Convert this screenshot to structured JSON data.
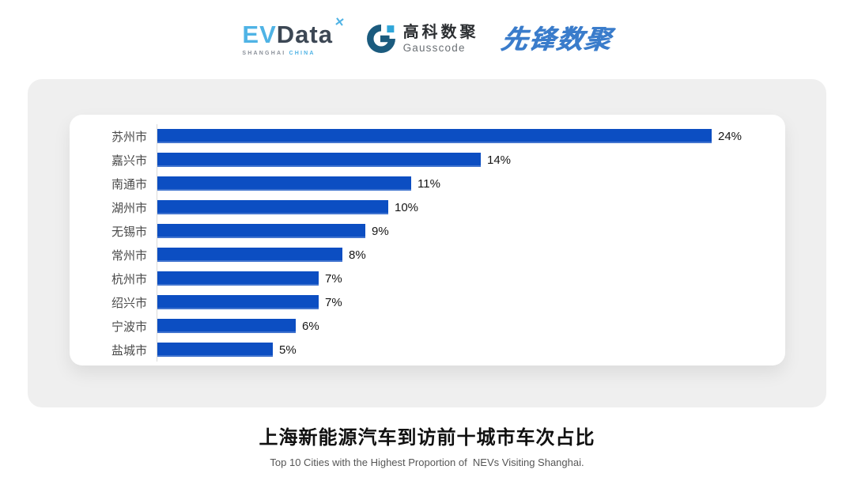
{
  "header": {
    "logos": {
      "evdata": {
        "ev": "EV",
        "data": "Data",
        "mark": "✕",
        "sub_left": "SHANGHAI",
        "sub_right": "CHINA"
      },
      "gausscode": {
        "cn": "高科数聚",
        "en": "Gausscode"
      },
      "pioneer": {
        "text": "先锋数聚"
      }
    }
  },
  "chart_data": {
    "type": "bar",
    "orientation": "horizontal",
    "categories": [
      "苏州市",
      "嘉兴市",
      "南通市",
      "湖州市",
      "无锡市",
      "常州市",
      "杭州市",
      "绍兴市",
      "宁波市",
      "盐城市"
    ],
    "values": [
      24,
      14,
      11,
      10,
      9,
      8,
      7,
      7,
      6,
      5
    ],
    "value_labels": [
      "24%",
      "14%",
      "11%",
      "10%",
      "9%",
      "8%",
      "7%",
      "7%",
      "6%",
      "5%"
    ],
    "xlim": [
      0,
      25
    ],
    "grid": false,
    "legend": false,
    "bar_color": "#0C4EC2",
    "title": "上海新能源汽车到访前十城市车次占比",
    "subtitle": "Top 10 Cities with the Highest Proportion of  NEVs Visiting Shanghai."
  },
  "colors": {
    "accent": "#0C4EC2",
    "panel-bg": "#EFEFEF",
    "card-bg": "#FFFFFF",
    "axis-color": "#D9D9D9",
    "label-color": "#4A4A4A",
    "value-color": "#161616",
    "title-color": "#111111",
    "subtitle-color": "#565656",
    "ev-blue": "#4FB3E5",
    "ev-dark": "#3C4754",
    "gauss-dark": "#1B5B7E",
    "gauss-light": "#2FA6D9",
    "pioneer": "#3A7CCB"
  }
}
